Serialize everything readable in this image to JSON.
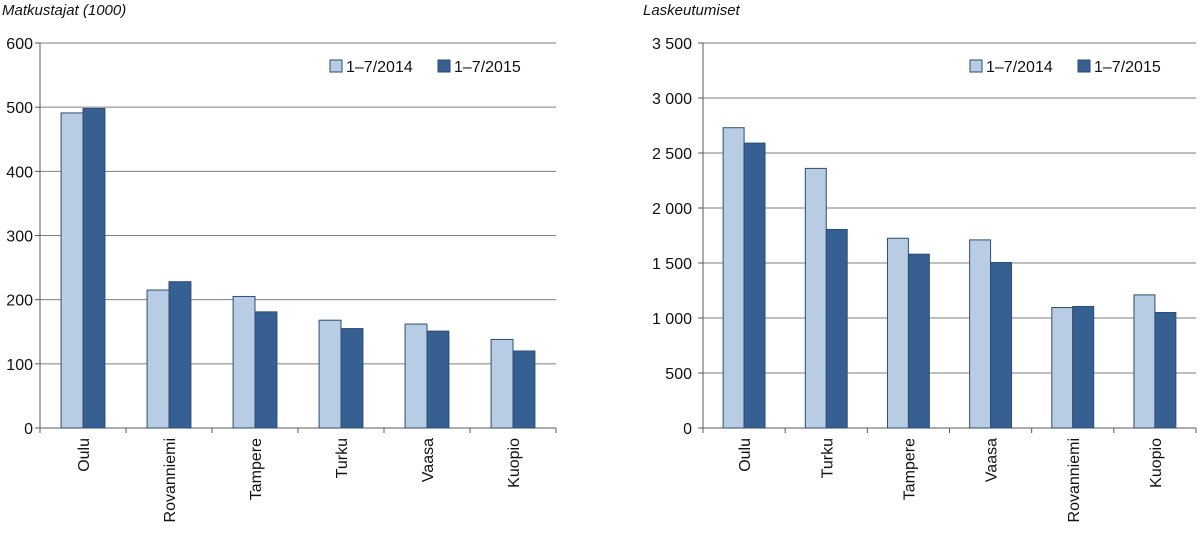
{
  "colors": {
    "series_2014": "#b8cce4",
    "series_2015": "#376092",
    "bar_stroke": "#2c4d75",
    "grid": "#7f7f7f",
    "axis": "#595959"
  },
  "chart_data": [
    {
      "type": "bar",
      "title": "Matkustajat (1000)",
      "categories": [
        "Oulu",
        "Rovanniemi",
        "Tampere",
        "Turku",
        "Vaasa",
        "Kuopio"
      ],
      "series": [
        {
          "name": "1–7/2014",
          "values": [
            491,
            215,
            205,
            168,
            162,
            138
          ]
        },
        {
          "name": "1–7/2015",
          "values": [
            498,
            228,
            181,
            155,
            151,
            120
          ]
        }
      ],
      "ylim": [
        0,
        600
      ],
      "yticks": [
        0,
        100,
        200,
        300,
        400,
        500,
        600
      ],
      "ytick_labels": [
        "0",
        "100",
        "200",
        "300",
        "400",
        "500",
        "600"
      ],
      "grid": true,
      "legend_position": "top-right"
    },
    {
      "type": "bar",
      "title": "Laskeutumiset",
      "categories": [
        "Oulu",
        "Turku",
        "Tampere",
        "Vaasa",
        "Rovanniemi",
        "Kuopio"
      ],
      "series": [
        {
          "name": "1–7/2014",
          "values": [
            2730,
            2360,
            1725,
            1710,
            1095,
            1210
          ]
        },
        {
          "name": "1–7/2015",
          "values": [
            2590,
            1805,
            1580,
            1505,
            1105,
            1050
          ]
        }
      ],
      "ylim": [
        0,
        3500
      ],
      "yticks": [
        0,
        500,
        1000,
        1500,
        2000,
        2500,
        3000,
        3500
      ],
      "ytick_labels": [
        "0",
        "500",
        "1 000",
        "1 500",
        "2 000",
        "2 500",
        "3 000",
        "3 500"
      ],
      "grid": true,
      "legend_position": "top-right"
    }
  ]
}
